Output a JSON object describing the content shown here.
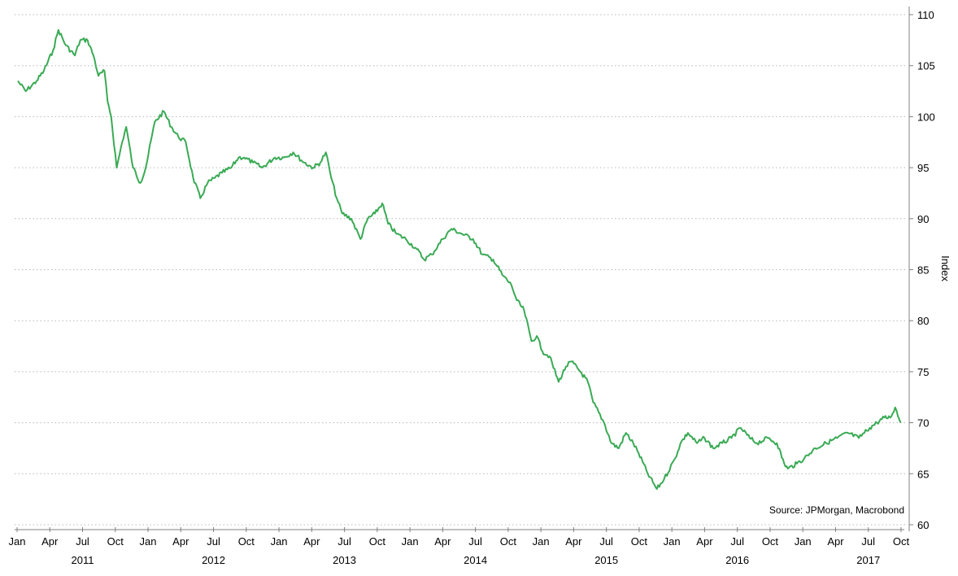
{
  "chart_data": {
    "type": "line",
    "title": "",
    "ylabel": "Index",
    "source": "Source: JPMorgan, Macrobond",
    "ylim": [
      60,
      110
    ],
    "y_ticks": [
      60,
      65,
      70,
      75,
      80,
      85,
      90,
      95,
      100,
      105,
      110
    ],
    "x_range": [
      "2011-01",
      "2017-10"
    ],
    "x_tick_labels": [
      "Jan",
      "Apr",
      "Jul",
      "Oct",
      "Jan",
      "Apr",
      "Jul",
      "Oct",
      "Jan",
      "Apr",
      "Jul",
      "Oct",
      "Jan",
      "Apr",
      "Jul",
      "Oct",
      "Jan",
      "Apr",
      "Jul",
      "Oct",
      "Jan",
      "Apr",
      "Jul",
      "Oct",
      "Jan",
      "Apr",
      "Jul",
      "Oct"
    ],
    "year_labels": [
      "2011",
      "2012",
      "2013",
      "2014",
      "2015",
      "2016",
      "2017"
    ],
    "grid": "horizontal-dotted",
    "color": "#3aaa55",
    "series": [
      {
        "x": [
          "2011-01-03",
          "2011-01-25",
          "2011-02-25",
          "2011-03-15",
          "2011-04-10",
          "2011-04-25",
          "2011-05-15",
          "2011-06-10",
          "2011-06-25",
          "2011-07-15",
          "2011-08-01",
          "2011-08-15",
          "2011-09-01",
          "2011-09-10",
          "2011-09-20",
          "2011-10-05",
          "2011-10-20",
          "2011-11-01",
          "2011-11-20",
          "2011-12-10",
          "2011-12-25",
          "2012-01-20",
          "2012-02-15",
          "2012-03-05",
          "2012-03-25",
          "2012-04-15",
          "2012-05-05",
          "2012-05-25",
          "2012-06-15",
          "2012-07-05",
          "2012-07-25",
          "2012-08-20",
          "2012-09-10",
          "2012-09-25",
          "2012-10-20",
          "2012-11-15",
          "2012-12-20",
          "2013-01-15",
          "2013-02-10",
          "2013-03-10",
          "2013-04-05",
          "2013-04-25",
          "2013-05-10",
          "2013-05-25",
          "2013-06-10",
          "2013-06-25",
          "2013-07-20",
          "2013-08-15",
          "2013-09-05",
          "2013-09-25",
          "2013-10-15",
          "2013-11-01",
          "2013-11-25",
          "2013-12-20",
          "2014-01-20",
          "2014-02-10",
          "2014-03-01",
          "2014-04-01",
          "2014-04-25",
          "2014-05-25",
          "2014-06-25",
          "2014-07-20",
          "2014-08-20",
          "2014-09-15",
          "2014-10-10",
          "2014-10-25",
          "2014-11-15",
          "2014-12-05",
          "2014-12-20",
          "2015-01-05",
          "2015-01-25",
          "2015-02-20",
          "2015-03-10",
          "2015-03-25",
          "2015-04-20",
          "2015-05-10",
          "2015-05-25",
          "2015-06-25",
          "2015-07-15",
          "2015-08-05",
          "2015-08-25",
          "2015-09-15",
          "2015-09-30",
          "2015-10-25",
          "2015-11-20",
          "2015-12-10",
          "2016-01-10",
          "2016-01-25",
          "2016-02-15",
          "2016-03-10",
          "2016-04-01",
          "2016-04-25",
          "2016-05-20",
          "2016-06-15",
          "2016-07-10",
          "2016-08-05",
          "2016-08-25",
          "2016-09-25",
          "2016-10-20",
          "2016-11-10",
          "2016-11-20",
          "2016-12-15",
          "2017-01-05",
          "2017-02-05",
          "2017-03-05",
          "2017-04-05",
          "2017-05-05",
          "2017-06-05",
          "2017-07-05",
          "2017-07-25",
          "2017-08-15",
          "2017-09-01",
          "2017-09-15",
          "2017-09-30"
        ],
        "values": [
          103.5,
          102.5,
          103.5,
          104.5,
          106.5,
          108.5,
          107.0,
          106.0,
          107.5,
          107.5,
          106.0,
          104.0,
          104.5,
          101.5,
          100.0,
          95.0,
          97.5,
          99.0,
          95.0,
          93.5,
          95.0,
          99.5,
          100.5,
          99.0,
          98.0,
          97.5,
          94.0,
          92.0,
          93.5,
          94.0,
          94.5,
          95.0,
          96.0,
          96.0,
          95.5,
          95.0,
          96.0,
          96.0,
          96.5,
          95.5,
          95.0,
          95.5,
          96.5,
          94.0,
          92.0,
          90.5,
          90.0,
          88.0,
          90.0,
          90.5,
          91.5,
          89.5,
          88.5,
          88.0,
          87.0,
          86.0,
          86.5,
          88.0,
          89.0,
          88.5,
          88.0,
          86.5,
          86.0,
          84.5,
          83.5,
          82.0,
          81.0,
          78.0,
          78.5,
          77.0,
          76.5,
          74.0,
          75.5,
          76.0,
          75.0,
          74.0,
          72.0,
          70.0,
          68.0,
          67.5,
          69.0,
          68.0,
          67.0,
          65.0,
          63.5,
          64.5,
          66.5,
          68.0,
          69.0,
          68.0,
          68.5,
          67.5,
          68.0,
          68.5,
          69.5,
          68.5,
          68.0,
          68.5,
          68.0,
          66.0,
          65.5,
          66.0,
          66.5,
          67.5,
          68.0,
          68.5,
          69.0,
          68.5,
          69.5,
          70.0,
          70.5,
          70.5,
          71.5,
          70.0
        ]
      }
    ]
  }
}
